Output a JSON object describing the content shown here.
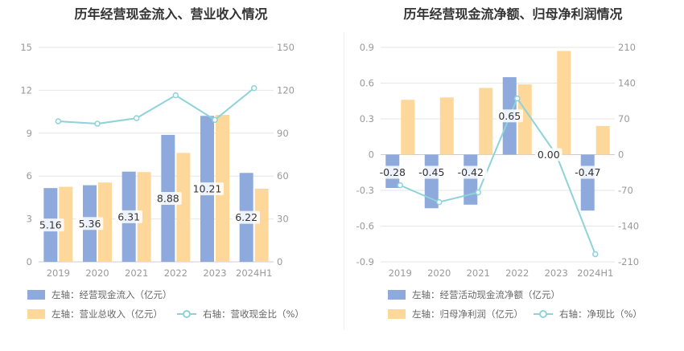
{
  "chart_data": [
    {
      "type": "bar",
      "title": "历年经营现金流入、营业收入情况",
      "categories": [
        "2019",
        "2020",
        "2021",
        "2022",
        "2023",
        "2024H1"
      ],
      "y_left": {
        "range": [
          0,
          15
        ],
        "ticks": [
          "0",
          "3",
          "6",
          "9",
          "12",
          "15"
        ]
      },
      "y_right": {
        "range": [
          0,
          150
        ],
        "ticks": [
          "0",
          "30",
          "60",
          "90",
          "120",
          "150"
        ]
      },
      "series": [
        {
          "name": "左轴：经营现金流入（亿元）",
          "type": "bar",
          "axis": "left",
          "color": "#8eaadc",
          "values": [
            5.16,
            5.36,
            6.31,
            8.88,
            10.21,
            6.22
          ],
          "labels": [
            "5.16",
            "5.36",
            "6.31",
            "8.88",
            "10.21",
            "6.22"
          ]
        },
        {
          "name": "左轴：营业总收入（亿元）",
          "type": "bar",
          "axis": "left",
          "color": "#fdd89a",
          "values": [
            5.25,
            5.55,
            6.28,
            7.62,
            10.28,
            5.12
          ]
        },
        {
          "name": "右轴：营收现金比（%）",
          "type": "line",
          "axis": "right",
          "color": "#8dd3d9",
          "values": [
            98.3,
            96.6,
            100.5,
            116.5,
            99.3,
            121.5
          ]
        }
      ],
      "grid": true,
      "legend": "bottom"
    },
    {
      "type": "bar",
      "title": "历年经营现金流净额、归母净利润情况",
      "categories": [
        "2019",
        "2020",
        "2021",
        "2022",
        "2023",
        "2024H1"
      ],
      "y_left": {
        "range": [
          -0.9,
          0.9
        ],
        "ticks": [
          "-0.9",
          "-0.6",
          "-0.3",
          "0",
          "0.3",
          "0.6",
          "0.9"
        ]
      },
      "y_right": {
        "range": [
          -210,
          210
        ],
        "ticks": [
          "-210",
          "-140",
          "-70",
          "0",
          "70",
          "140",
          "210"
        ]
      },
      "series": [
        {
          "name": "左轴：经营活动现金流净额（亿元）",
          "type": "bar",
          "axis": "left",
          "color": "#8eaadc",
          "values": [
            -0.28,
            -0.45,
            -0.42,
            0.65,
            0.0,
            -0.47
          ],
          "labels": [
            "-0.28",
            "-0.45",
            "-0.42",
            "0.65",
            "0.00",
            "-0.47"
          ]
        },
        {
          "name": "左轴：归母净利润（亿元）",
          "type": "bar",
          "axis": "left",
          "color": "#fdd89a",
          "values": [
            0.46,
            0.48,
            0.56,
            0.59,
            0.87,
            0.24
          ]
        },
        {
          "name": "右轴：净现比（%）",
          "type": "line",
          "axis": "right",
          "color": "#8dd3d9",
          "values": [
            -60,
            -93,
            -74,
            110,
            0,
            -195
          ]
        }
      ],
      "grid": true,
      "legend": "bottom"
    }
  ]
}
